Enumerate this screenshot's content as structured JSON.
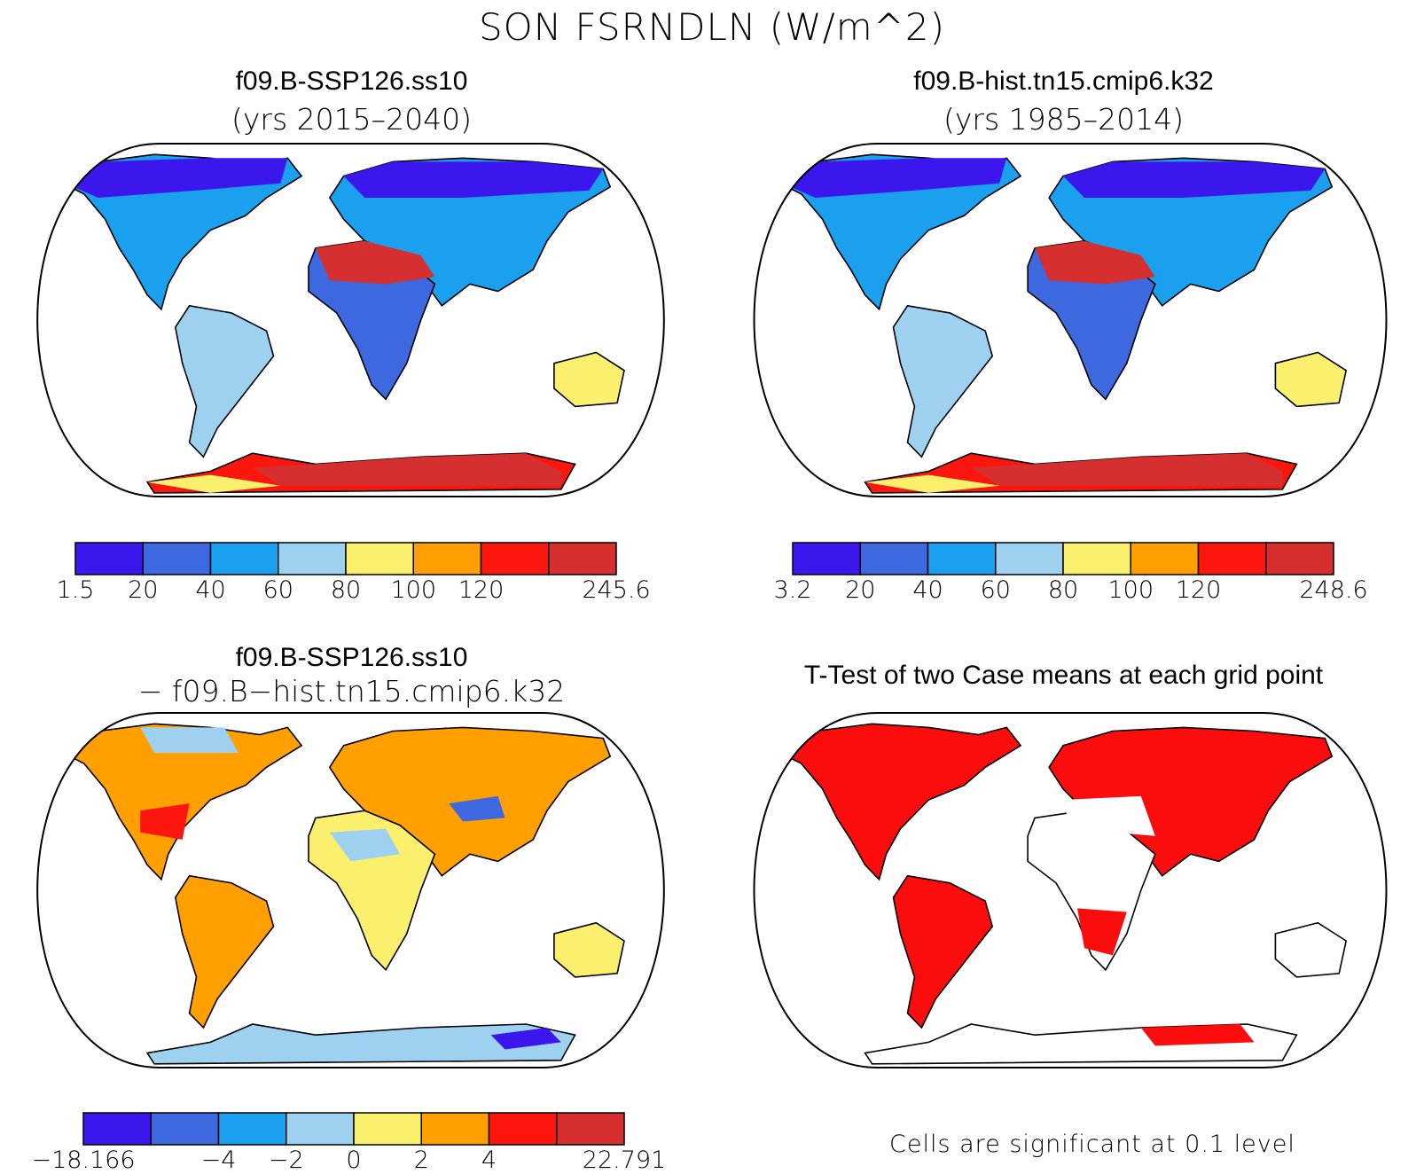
{
  "figure": {
    "title": "SON FSRNDLN (W/m^2)"
  },
  "panels": [
    {
      "id": "ssp",
      "title": "f09.B-SSP126.ss10",
      "subtitle": "(yrs 2015–2040)",
      "colorbar": {
        "colors": [
          "#3b17ee",
          "#3d68e0",
          "#1aa0ef",
          "#9ed1f0",
          "#fbef6e",
          "#ff9f00",
          "#fb170d",
          "#d5302f"
        ],
        "labels": [
          "1.5",
          "20",
          "40",
          "60",
          "80",
          "100",
          "120",
          "245.6"
        ],
        "label_boundaries": [
          0,
          1,
          2,
          3,
          4,
          5,
          6,
          8
        ]
      }
    },
    {
      "id": "hist",
      "title": "f09.B-hist.tn15.cmip6.k32",
      "subtitle": "(yrs 1985–2014)",
      "colorbar": {
        "colors": [
          "#3b17ee",
          "#3d68e0",
          "#1aa0ef",
          "#9ed1f0",
          "#fbef6e",
          "#ff9f00",
          "#fb170d",
          "#d5302f"
        ],
        "labels": [
          "3.2",
          "20",
          "40",
          "60",
          "80",
          "100",
          "120",
          "248.6"
        ],
        "label_boundaries": [
          0,
          1,
          2,
          3,
          4,
          5,
          6,
          8
        ]
      }
    },
    {
      "id": "diff",
      "title": "f09.B-SSP126.ss10",
      "subtitle": "− f09.B−hist.tn15.cmip6.k32",
      "colorbar": {
        "colors": [
          "#3b17ee",
          "#3d68e0",
          "#1aa0ef",
          "#9ed1f0",
          "#fbef6e",
          "#ff9f00",
          "#fb170d",
          "#d5302f"
        ],
        "labels": [
          "−18.166",
          "−4",
          "−2",
          "0",
          "2",
          "4",
          "22.791"
        ],
        "label_boundaries": [
          0,
          2,
          3,
          4,
          5,
          6,
          8
        ]
      }
    },
    {
      "id": "ttest",
      "title": "T-Test of two Case means at each grid point",
      "note": "Cells are significant at 0.1 level",
      "highlight_color": "#fb0d0d"
    }
  ]
}
